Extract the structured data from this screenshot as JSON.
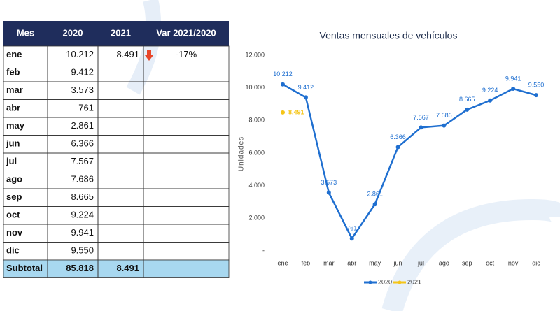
{
  "table": {
    "header": [
      "Mes",
      "2020",
      "2021",
      "Var 2021/2020"
    ],
    "rows": [
      [
        "ene",
        "10.212",
        "8.491",
        "-17%"
      ],
      [
        "feb",
        "9.412"
      ],
      [
        "mar",
        "3.573"
      ],
      [
        "abr",
        "761"
      ],
      [
        "may",
        "2.861"
      ],
      [
        "jun",
        "6.366"
      ],
      [
        "jul",
        "7.567"
      ],
      [
        "ago",
        "7.686"
      ],
      [
        "sep",
        "8.665"
      ],
      [
        "oct",
        "9.224"
      ],
      [
        "nov",
        "9.941"
      ],
      [
        "dic",
        "9.550"
      ],
      [
        "Subtotal",
        "85.818",
        "8.491"
      ]
    ]
  },
  "chart_data": {
    "type": "line",
    "title": "Ventas mensuales de vehículos",
    "y_label": "Unidades",
    "categories": [
      "ene",
      "feb",
      "mar",
      "abr",
      "may",
      "jun",
      "jul",
      "ago",
      "sep",
      "oct",
      "nov",
      "dic"
    ],
    "series": [
      {
        "name": "2020",
        "color": "#1f6fd0",
        "values": [
          10212,
          9412,
          3573,
          761,
          2861,
          6366,
          7567,
          7686,
          8665,
          9224,
          9941,
          9550
        ],
        "value_labels": [
          "10.212",
          "9.412",
          "3.573",
          "761",
          "2.861",
          "6.366",
          "7.567",
          "7.686",
          "8.665",
          "9.224",
          "9.941",
          "9.550"
        ]
      },
      {
        "name": "2021",
        "color": "#f5c518",
        "values": [
          8491,
          null,
          null,
          null,
          null,
          null,
          null,
          null,
          null,
          null,
          null,
          null
        ],
        "value_labels": [
          "8.491",
          null,
          null,
          null,
          null,
          null,
          null,
          null,
          null,
          null,
          null,
          null
        ]
      }
    ],
    "ylim": [
      0,
      12000
    ],
    "yticks": [
      {
        "value": 0,
        "label": "-"
      },
      {
        "value": 2000,
        "label": "2.000"
      },
      {
        "value": 4000,
        "label": "4.000"
      },
      {
        "value": 6000,
        "label": "6.000"
      },
      {
        "value": 8000,
        "label": "8.000"
      },
      {
        "value": 10000,
        "label": "10.000"
      },
      {
        "value": 12000,
        "label": "12.000"
      }
    ],
    "grid": false,
    "legend": "bottom"
  }
}
